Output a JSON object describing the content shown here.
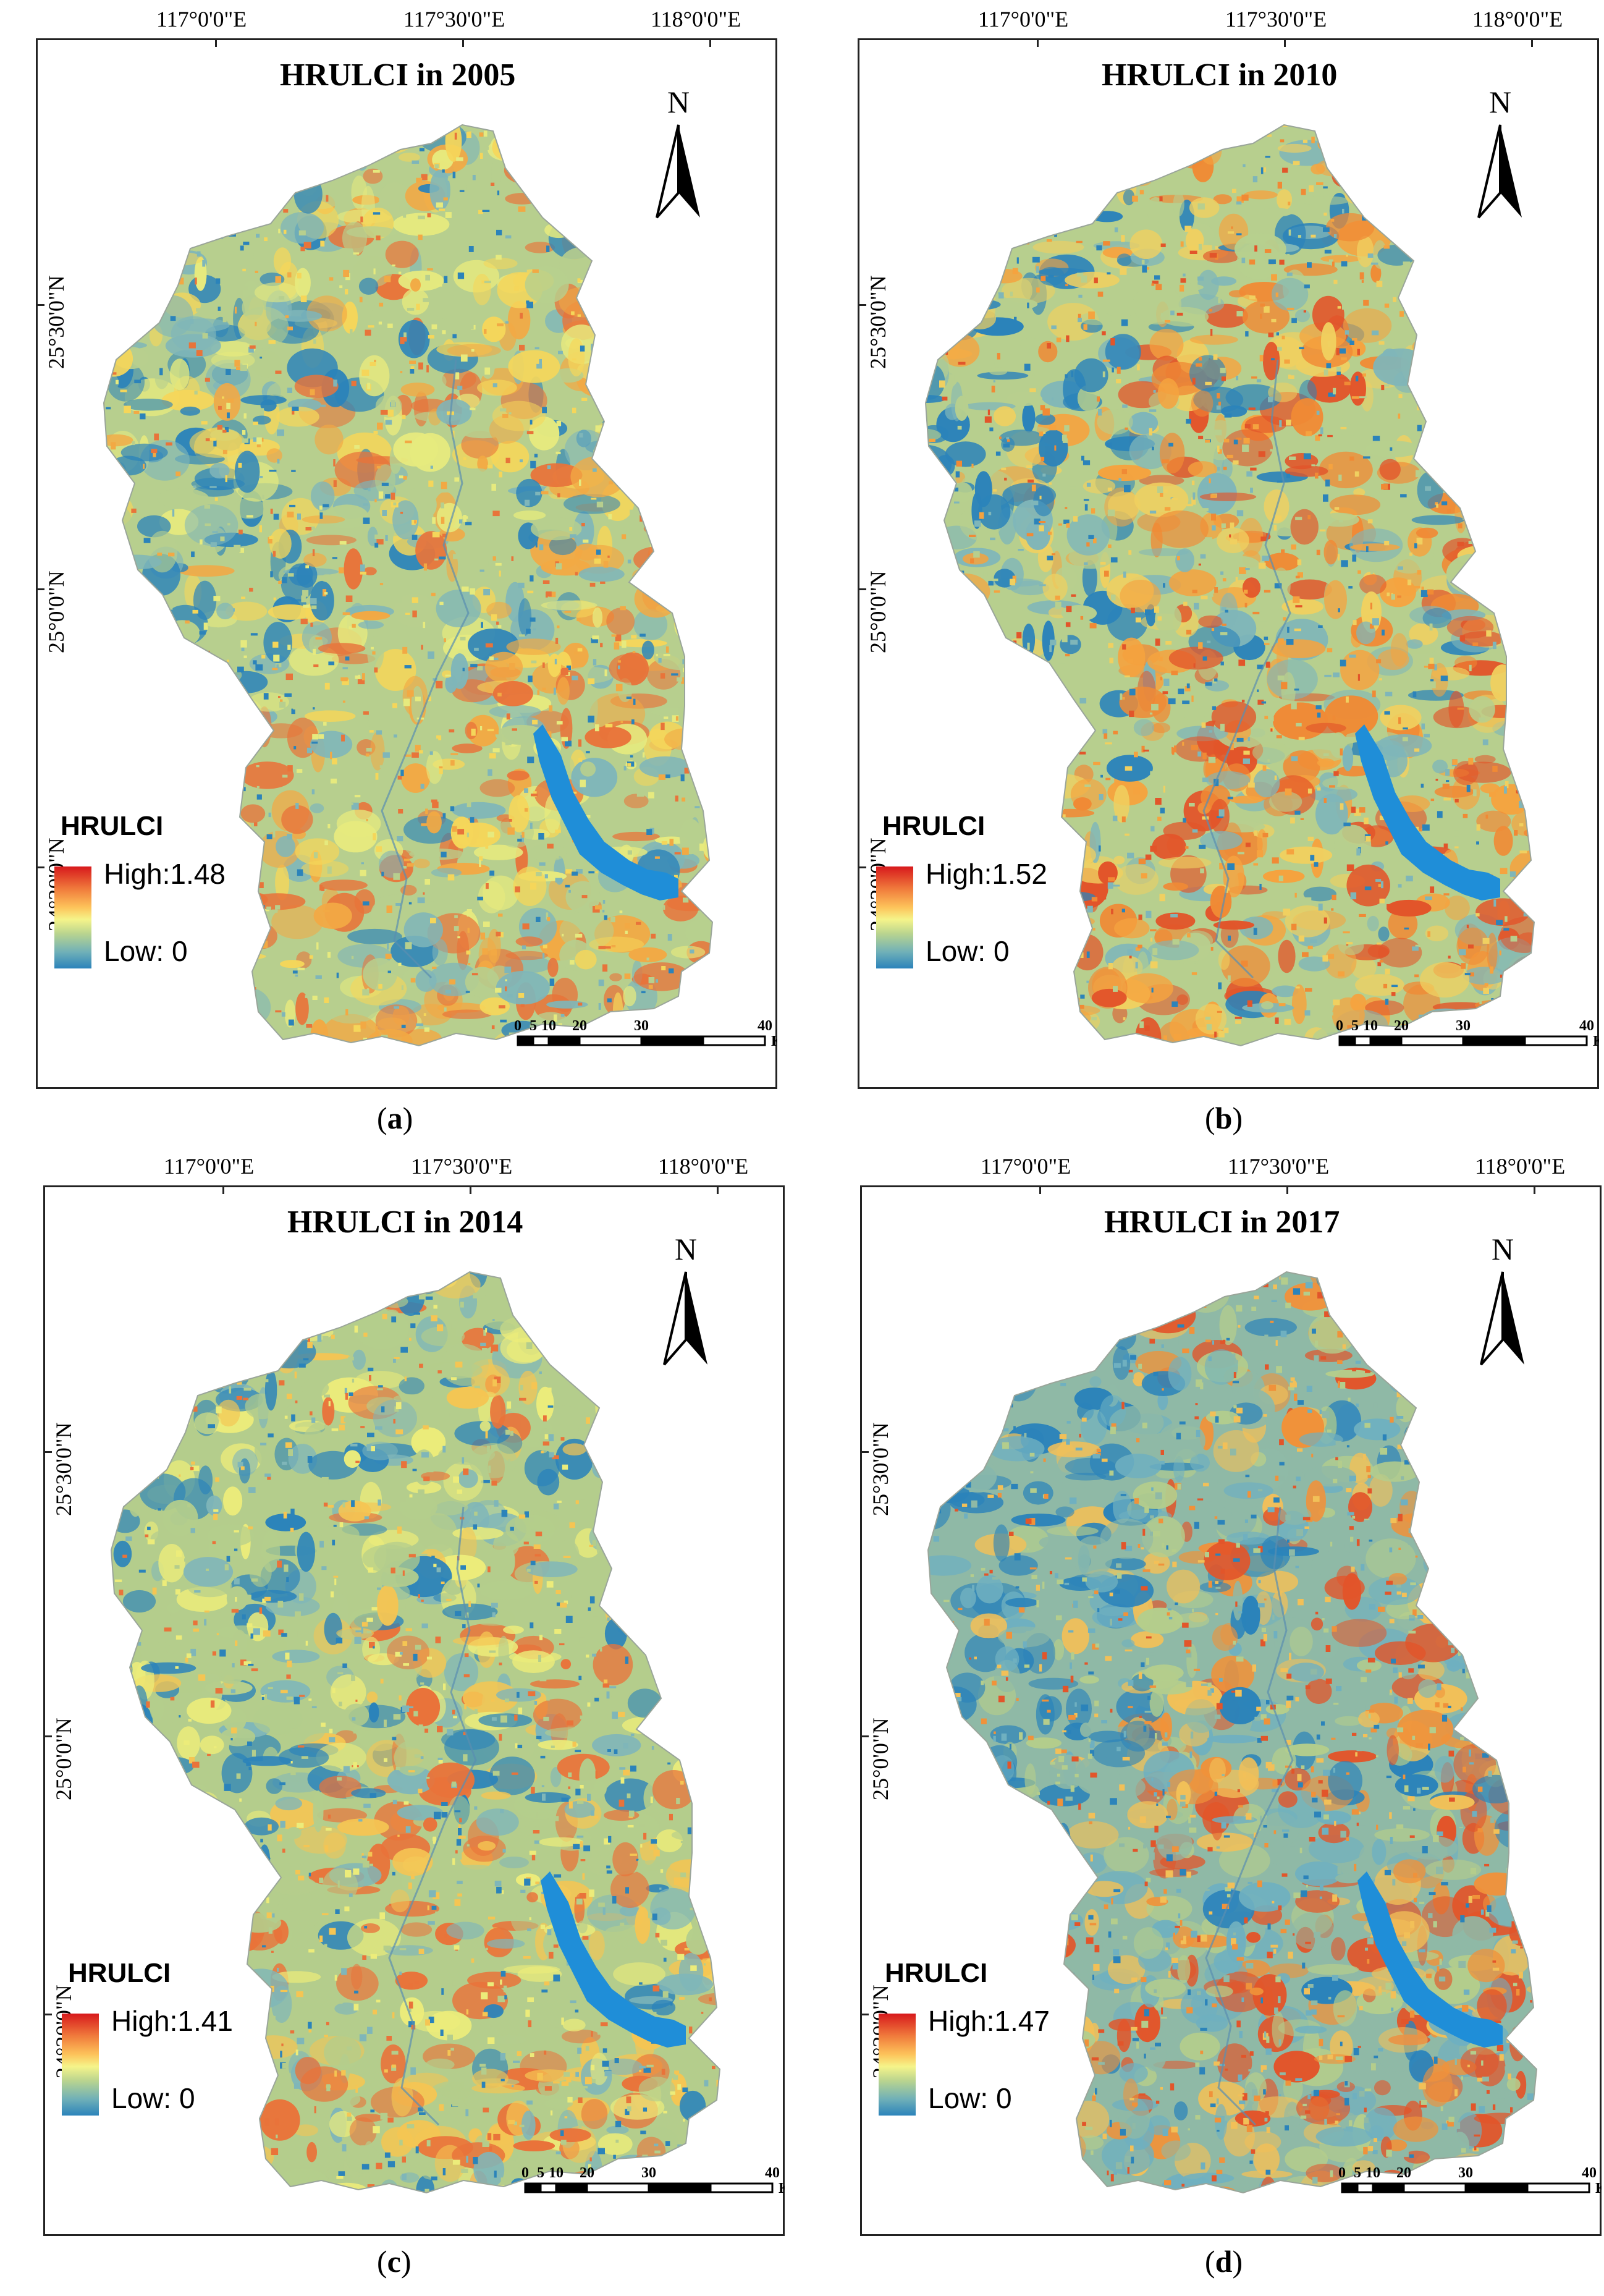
{
  "panels": [
    {
      "id": "a",
      "title": "HRULCI in 2005",
      "label": "a",
      "legend": {
        "title": "HRULCI",
        "high": "High:1.48",
        "low": "Low: 0"
      },
      "palette": [
        "#2b83ba",
        "#7fb6b9",
        "#b7cf8e",
        "#e6ea7e",
        "#f5d65a",
        "#f2a944",
        "#e8743a"
      ]
    },
    {
      "id": "b",
      "title": "HRULCI in 2010",
      "label": "b",
      "legend": {
        "title": "HRULCI",
        "high": "High:1.52",
        "low": "Low: 0"
      },
      "palette": [
        "#2b83ba",
        "#7fb6b9",
        "#b7cf8e",
        "#f0d060",
        "#f5a33f",
        "#f08a35",
        "#e2552a"
      ]
    },
    {
      "id": "c",
      "title": "HRULCI in 2014",
      "label": "c",
      "legend": {
        "title": "HRULCI",
        "high": "High:1.41",
        "low": "Low: 0"
      },
      "palette": [
        "#2b83ba",
        "#7fb6b9",
        "#b4cd8c",
        "#b4cd8c",
        "#ecec7a",
        "#f5c553",
        "#e9733a"
      ]
    },
    {
      "id": "d",
      "title": "HRULCI in 2017",
      "label": "d",
      "legend": {
        "title": "HRULCI",
        "high": "High:1.47",
        "low": "Low: 0"
      },
      "palette": [
        "#2b83ba",
        "#6fb0c0",
        "#8fb9a6",
        "#b4cd8c",
        "#f2c058",
        "#f0923a",
        "#e2552a"
      ]
    }
  ],
  "axes": {
    "lon_labels": [
      "117°0'0\"E",
      "117°30'0\"E",
      "118°0'0\"E"
    ],
    "lat_labels": [
      "25°30'0\"N",
      "25°0'0\"N",
      "24°30'0\"N"
    ]
  },
  "north_arrow": "N",
  "scalebar": {
    "ticks": [
      "0",
      "5",
      "10",
      "20",
      "30",
      "40"
    ],
    "unit": "Km"
  },
  "colors": {
    "legend_high": "#d7191c",
    "legend_mid": "#f5f48a",
    "legend_low": "#2b83ba",
    "river": "#1f8ed8"
  }
}
